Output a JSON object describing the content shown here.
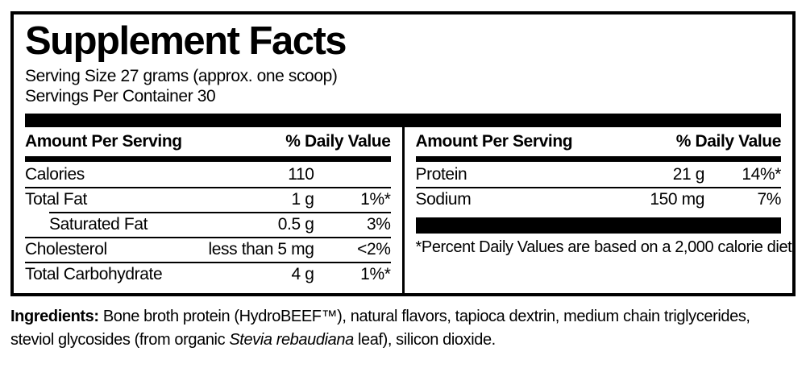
{
  "label": {
    "title": "Supplement Facts",
    "serving_size": "Serving Size 27 grams (approx. one scoop)",
    "servings_per_container": "Servings Per Container 30",
    "amount_header": "Amount Per Serving",
    "dv_header": "% Daily Value",
    "left_rows": [
      {
        "name": "Calories",
        "amount": "110",
        "dv": ""
      },
      {
        "name": "Total Fat",
        "amount": "1 g",
        "dv": "1%*"
      },
      {
        "name": "Saturated Fat",
        "amount": "0.5 g",
        "dv": "3%"
      },
      {
        "name": "Cholesterol",
        "amount": "less than 5 mg",
        "dv": "<2%"
      },
      {
        "name": "Total Carbohydrate",
        "amount": "4 g",
        "dv": "1%*"
      }
    ],
    "right_rows": [
      {
        "name": "Protein",
        "amount": "21 g",
        "dv": "14%*"
      },
      {
        "name": "Sodium",
        "amount": "150 mg",
        "dv": "7%"
      }
    ],
    "footnote": "*Percent Daily Values are based on a 2,000 calorie diet."
  },
  "ingredients": {
    "label": "Ingredients:",
    "text_before_italic": " Bone broth protein (HydroBEEF™), natural flavors, tapioca dextrin, medium chain triglycerides, steviol glycosides (from organic ",
    "italic": "Stevia rebaudiana",
    "text_after_italic": " leaf), silicon dioxide."
  },
  "colors": {
    "text": "#000000",
    "background": "#ffffff"
  }
}
